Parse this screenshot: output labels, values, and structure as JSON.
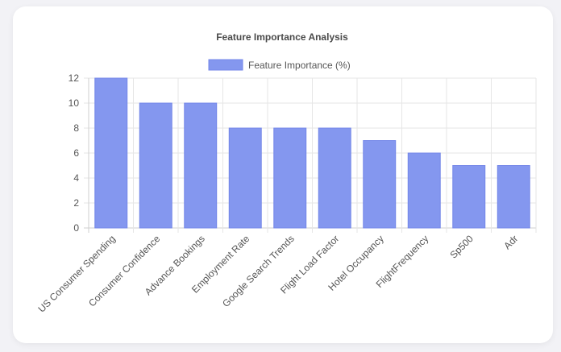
{
  "colors": {
    "bar_fill": "#8497ef",
    "bar_stroke": "#7487e8",
    "grid": "#e6e6e6",
    "axis": "#cfcfcf",
    "text": "#555555",
    "card": "#ffffff",
    "page_bg": "#f2f2f6"
  },
  "chart_data": {
    "type": "bar",
    "title": "Feature Importance Analysis",
    "categories": [
      "US Consumer Spending",
      "Consumer Confidence",
      "Advance Bookings",
      "Employment Rate",
      "Google Search Trends",
      "Flight Load Factor",
      "Hotel Occupancy",
      "FlightFrequency",
      "Sp500",
      "Adr"
    ],
    "series": [
      {
        "name": "Feature Importance (%)",
        "values": [
          12,
          10,
          10,
          8,
          8,
          8,
          7,
          6,
          5,
          5
        ]
      }
    ],
    "ylim": [
      0,
      12
    ],
    "yticks": [
      0,
      2,
      4,
      6,
      8,
      10,
      12
    ],
    "grid": true,
    "legend": "top-center",
    "xlabel": "",
    "ylabel": ""
  }
}
